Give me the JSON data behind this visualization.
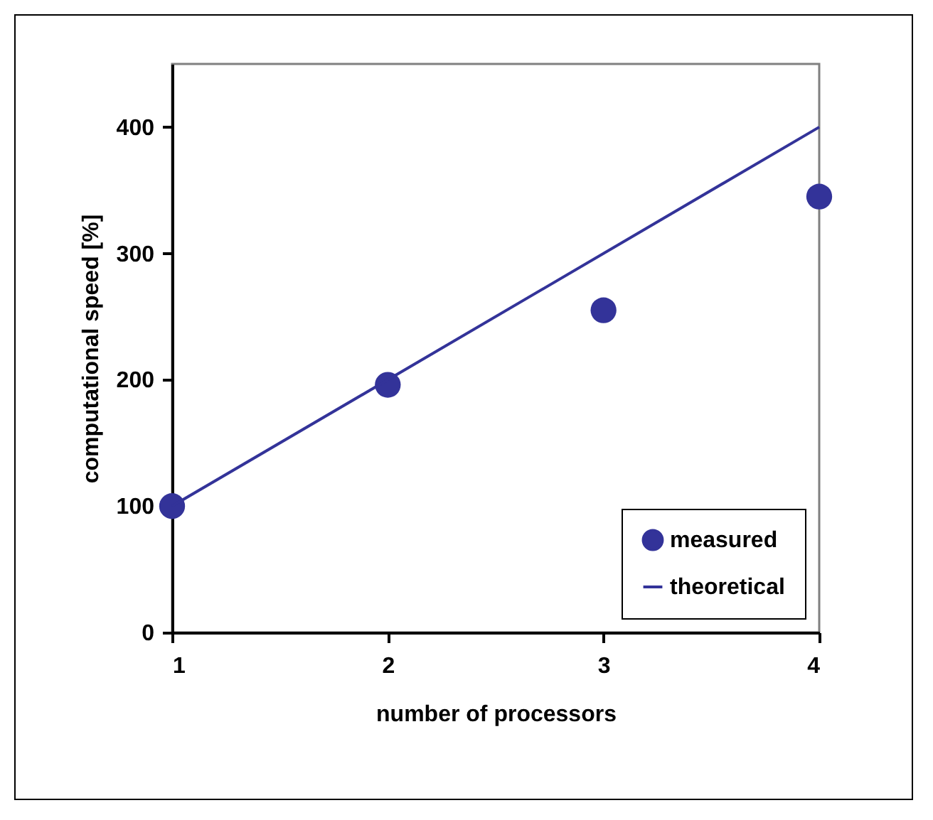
{
  "chart_data": {
    "type": "scatter",
    "xlabel": "number of processors",
    "ylabel": "computational speed [%]",
    "x": [
      1,
      2,
      3,
      4
    ],
    "series": [
      {
        "name": "measured",
        "color": "#333399",
        "marker": "circle",
        "values": [
          100,
          196,
          255,
          345
        ]
      },
      {
        "name": "theoretical",
        "type": "line",
        "color": "#333399",
        "x": [
          1,
          4
        ],
        "values": [
          100,
          400
        ]
      }
    ],
    "xlim": [
      1,
      4
    ],
    "xticks": [
      1,
      2,
      3,
      4
    ],
    "ylim": [
      0,
      450
    ],
    "yticks": [
      0,
      100,
      200,
      300,
      400
    ],
    "grid": false,
    "legend": "bottom right"
  }
}
